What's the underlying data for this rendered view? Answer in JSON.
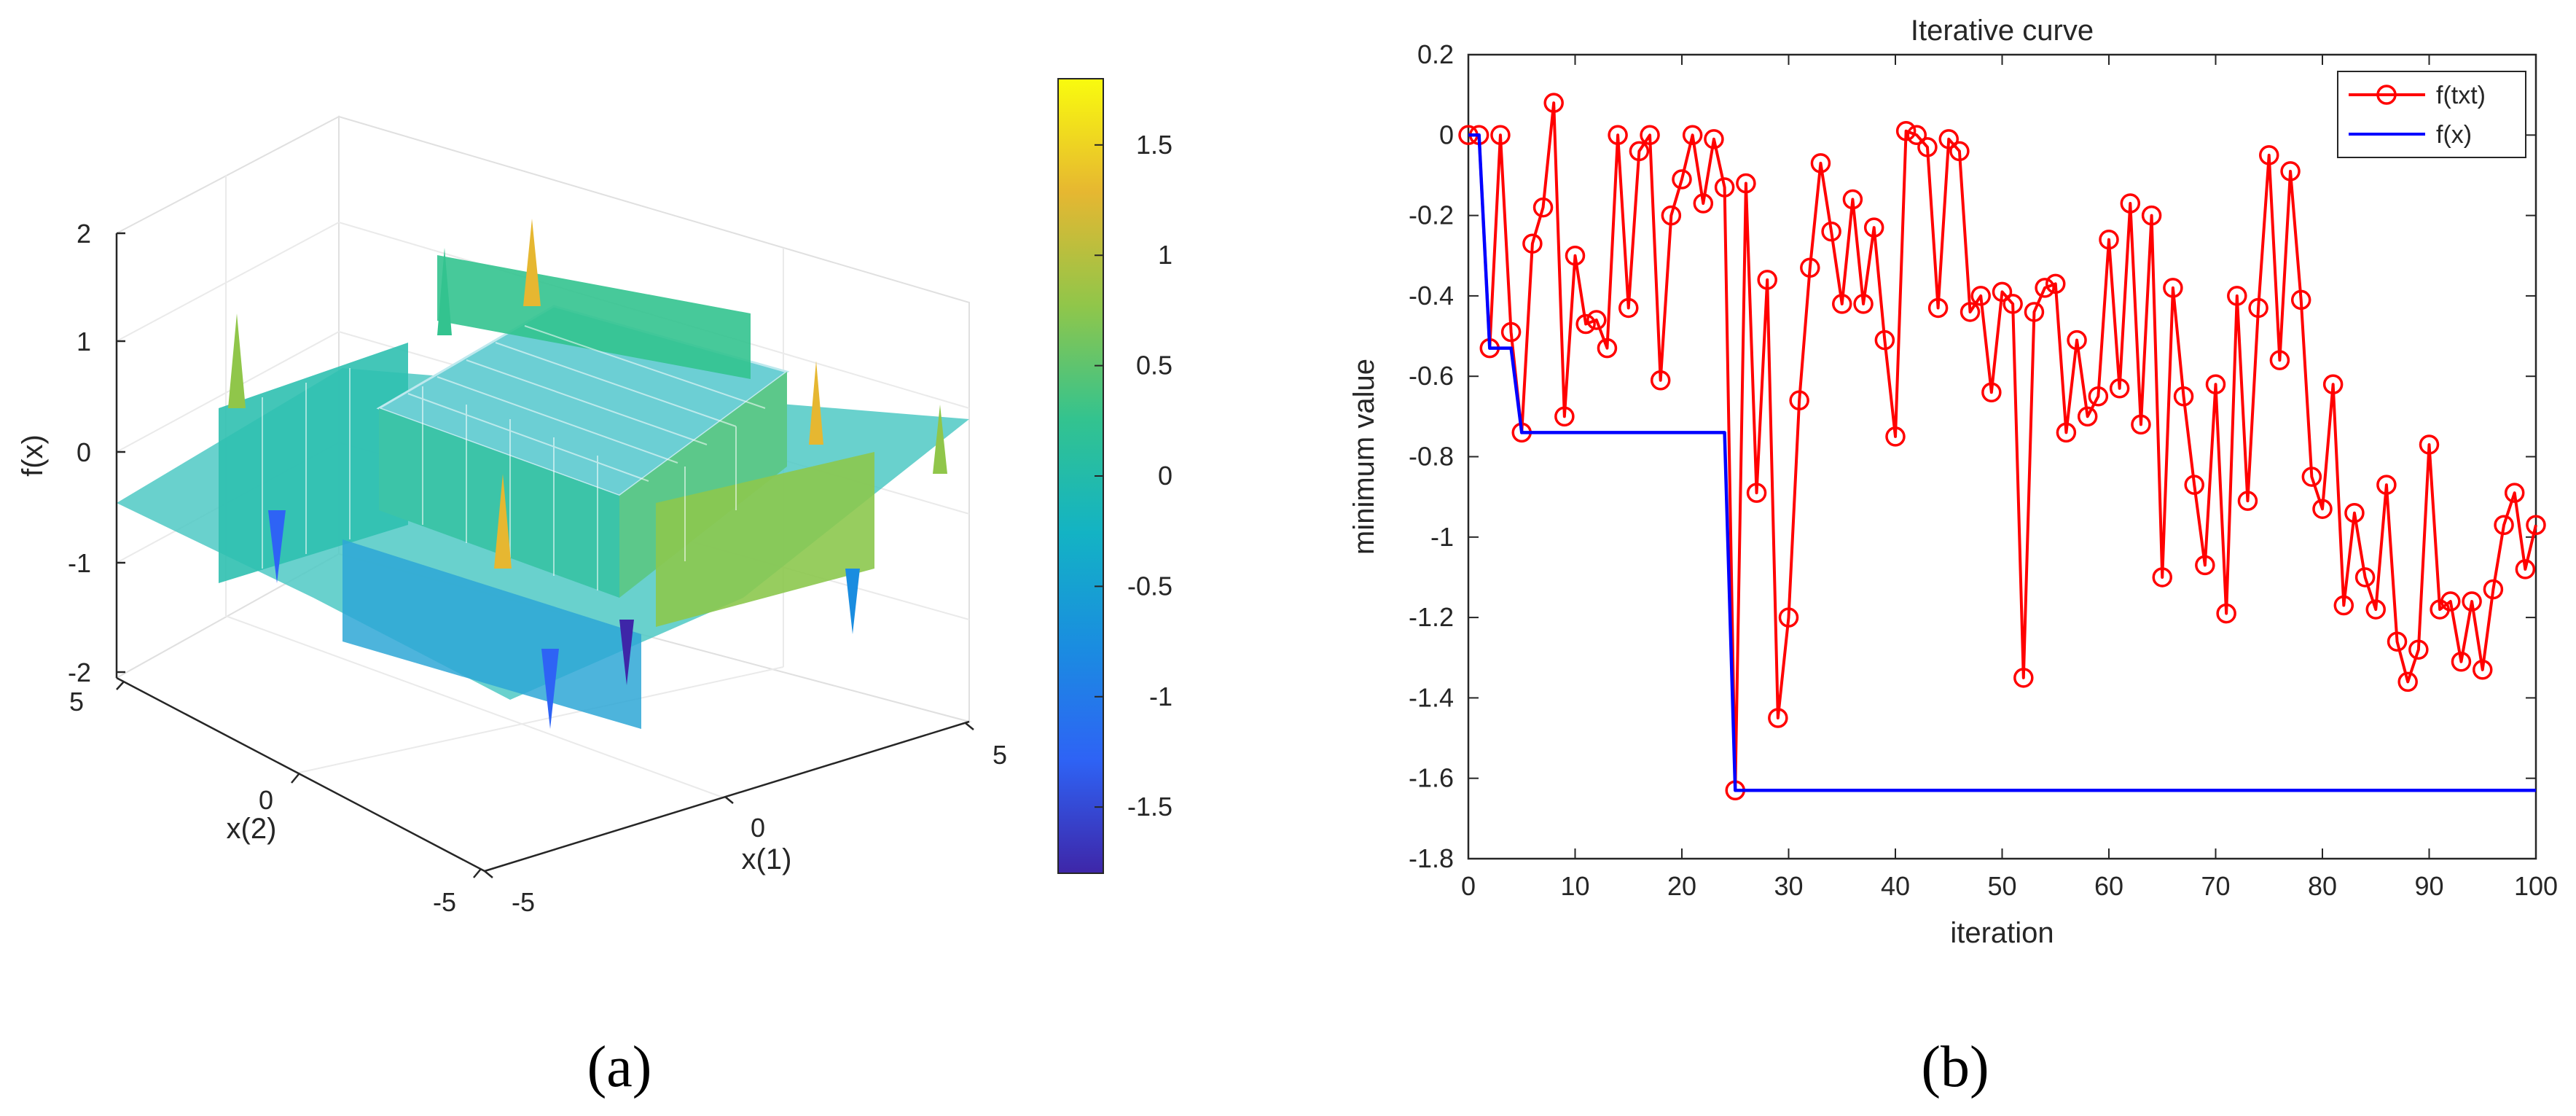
{
  "panels": {
    "a": {
      "label": "(a)"
    },
    "b": {
      "label": "(b)"
    }
  },
  "surface_plot": {
    "zlabel": "f(x)",
    "xlabel": "x(1)",
    "ylabel": "x(2)",
    "z_ticks": [
      "2",
      "1",
      "0",
      "-1",
      "-2"
    ],
    "x_ticks": [
      "-5",
      "0",
      "5"
    ],
    "y_ticks": [
      "5",
      "0",
      "-5"
    ],
    "colorbar": {
      "ticks": [
        "1.5",
        "1",
        "0.5",
        "0",
        "-0.5",
        "-1",
        "-1.5"
      ],
      "range": [
        -1.8,
        1.8
      ],
      "colors": [
        "#3e26a8",
        "#2e63f5",
        "#1a8de0",
        "#13b3c4",
        "#33c38f",
        "#90c64a",
        "#e6b731",
        "#f9fb0e"
      ]
    }
  },
  "chart_data": {
    "type": "line",
    "title": "Iterative curve",
    "xlabel": "iteration",
    "ylabel": "minimum value",
    "xlim": [
      0,
      100
    ],
    "ylim": [
      -1.8,
      0.2
    ],
    "x_ticks": [
      0,
      10,
      20,
      30,
      40,
      50,
      60,
      70,
      80,
      90,
      100
    ],
    "y_ticks": [
      0.2,
      0,
      -0.2,
      -0.4,
      -0.6,
      -0.8,
      -1,
      -1.2,
      -1.4,
      -1.6,
      -1.8
    ],
    "x_tick_labels": [
      "0",
      "10",
      "20",
      "30",
      "40",
      "50",
      "60",
      "70",
      "80",
      "90",
      "100"
    ],
    "y_tick_labels": [
      "0.2",
      "0",
      "-0.2",
      "-0.4",
      "-0.6",
      "-0.8",
      "-1",
      "-1.2",
      "-1.4",
      "-1.6",
      "-1.8"
    ],
    "legend_position": "top-right",
    "series": [
      {
        "name": "f(txt)",
        "color": "#ff0000",
        "marker": "circle",
        "x": [
          0,
          1,
          2,
          3,
          4,
          5,
          6,
          7,
          8,
          9,
          10,
          11,
          12,
          13,
          14,
          15,
          16,
          17,
          18,
          19,
          20,
          21,
          22,
          23,
          24,
          25,
          26,
          27,
          28,
          29,
          30,
          31,
          32,
          33,
          34,
          35,
          36,
          37,
          38,
          39,
          40,
          41,
          42,
          43,
          44,
          45,
          46,
          47,
          48,
          49,
          50,
          51,
          52,
          53,
          54,
          55,
          56,
          57,
          58,
          59,
          60,
          61,
          62,
          63,
          64,
          65,
          66,
          67,
          68,
          69,
          70,
          71,
          72,
          73,
          74,
          75,
          76,
          77,
          78,
          79,
          80,
          81,
          82,
          83,
          84,
          85,
          86,
          87,
          88,
          89,
          90,
          91,
          92,
          93,
          94,
          95,
          96,
          97,
          98,
          99,
          100
        ],
        "y": [
          0,
          0,
          -0.53,
          0,
          -0.49,
          -0.74,
          -0.27,
          -0.18,
          0.08,
          -0.7,
          -0.3,
          -0.47,
          -0.46,
          -0.53,
          0,
          -0.43,
          -0.04,
          0,
          -0.61,
          -0.2,
          -0.11,
          0,
          -0.17,
          -0.01,
          -0.13,
          -1.63,
          -0.12,
          -0.89,
          -0.36,
          -1.45,
          -1.2,
          -0.66,
          -0.33,
          -0.07,
          -0.24,
          -0.42,
          -0.16,
          -0.42,
          -0.23,
          -0.51,
          -0.75,
          0.01,
          0,
          -0.03,
          -0.43,
          -0.01,
          -0.04,
          -0.44,
          -0.4,
          -0.64,
          -0.39,
          -0.42,
          -1.35,
          -0.44,
          -0.38,
          -0.37,
          -0.74,
          -0.51,
          -0.7,
          -0.65,
          -0.26,
          -0.63,
          -0.17,
          -0.72,
          -0.2,
          -1.1,
          -0.38,
          -0.65,
          -0.87,
          -1.07,
          -0.62,
          -1.19,
          -0.4,
          -0.91,
          -0.43,
          -0.05,
          -0.56,
          -0.09,
          -0.41,
          -0.85,
          -0.93,
          -0.62,
          -1.17,
          -0.94,
          -1.1,
          -1.18,
          -0.87,
          -1.26,
          -1.36,
          -1.28,
          -0.77,
          -1.18,
          -1.16,
          -1.31,
          -1.16,
          -1.33,
          -1.13,
          -0.97,
          -0.89,
          -1.08,
          -0.97
        ]
      },
      {
        "name": "f(x)",
        "color": "#0000ff",
        "marker": "none",
        "x": [
          0,
          1,
          2,
          3,
          4,
          5,
          24,
          25,
          100
        ],
        "y": [
          0,
          0,
          -0.53,
          -0.53,
          -0.53,
          -0.74,
          -0.74,
          -1.63,
          -1.63
        ]
      }
    ]
  }
}
